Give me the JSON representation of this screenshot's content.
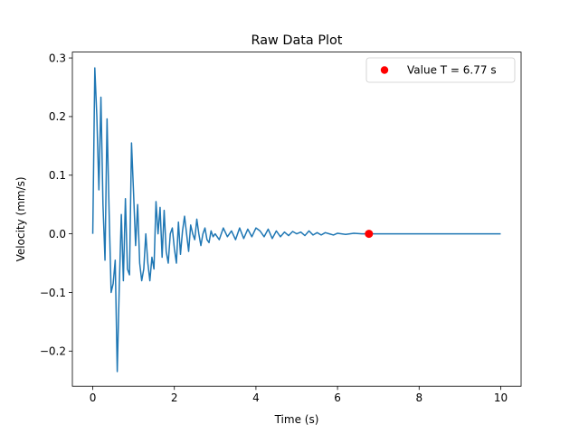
{
  "chart_data": {
    "type": "line",
    "title": "Raw Data Plot",
    "xlabel": "Time (s)",
    "ylabel": "Velocity (mm/s)",
    "xlim": [
      -0.5,
      10.5
    ],
    "ylim": [
      -0.26,
      0.31
    ],
    "xticks": [
      0,
      2,
      4,
      6,
      8,
      10
    ],
    "yticks": [
      -0.2,
      -0.1,
      0.0,
      0.1,
      0.2,
      0.3
    ],
    "xtick_labels": [
      "0",
      "2",
      "4",
      "6",
      "8",
      "10"
    ],
    "ytick_labels": [
      "−0.2",
      "−0.1",
      "0.0",
      "0.1",
      "0.2",
      "0.3"
    ],
    "grid": false,
    "legend_position": "top-right",
    "series": [
      {
        "color": "#1f77b4",
        "x": [
          0.0,
          0.05,
          0.1,
          0.15,
          0.2,
          0.25,
          0.3,
          0.35,
          0.4,
          0.45,
          0.5,
          0.55,
          0.6,
          0.65,
          0.7,
          0.75,
          0.8,
          0.85,
          0.9,
          0.95,
          1.0,
          1.05,
          1.1,
          1.15,
          1.2,
          1.25,
          1.3,
          1.35,
          1.4,
          1.45,
          1.5,
          1.55,
          1.6,
          1.65,
          1.7,
          1.75,
          1.8,
          1.85,
          1.9,
          1.95,
          2.0,
          2.05,
          2.1,
          2.15,
          2.2,
          2.25,
          2.3,
          2.35,
          2.4,
          2.45,
          2.5,
          2.55,
          2.6,
          2.65,
          2.7,
          2.75,
          2.8,
          2.85,
          2.9,
          2.95,
          3.0,
          3.1,
          3.2,
          3.3,
          3.4,
          3.5,
          3.6,
          3.7,
          3.8,
          3.9,
          4.0,
          4.1,
          4.2,
          4.3,
          4.4,
          4.5,
          4.6,
          4.7,
          4.8,
          4.9,
          5.0,
          5.1,
          5.2,
          5.3,
          5.4,
          5.5,
          5.6,
          5.7,
          5.8,
          5.9,
          6.0,
          6.2,
          6.4,
          6.6,
          6.8,
          7.0,
          7.2,
          7.4,
          7.6,
          7.8,
          8.0,
          8.5,
          9.0,
          9.5,
          10.0
        ],
        "y": [
          0.0,
          0.283,
          0.2,
          0.075,
          0.233,
          0.05,
          -0.045,
          0.196,
          0.04,
          -0.1,
          -0.085,
          -0.045,
          -0.235,
          -0.09,
          0.033,
          -0.08,
          0.06,
          -0.06,
          -0.07,
          0.155,
          0.07,
          -0.02,
          0.05,
          -0.05,
          -0.08,
          -0.06,
          0.0,
          -0.05,
          -0.08,
          -0.04,
          -0.06,
          0.055,
          0.0,
          0.045,
          -0.04,
          0.04,
          -0.03,
          -0.05,
          0.0,
          0.01,
          -0.025,
          -0.05,
          0.02,
          -0.035,
          0.005,
          0.03,
          0.0,
          -0.03,
          0.015,
          0.0,
          -0.01,
          0.025,
          0.0,
          -0.02,
          0.0,
          0.01,
          -0.01,
          -0.015,
          0.005,
          -0.005,
          0.0,
          -0.01,
          0.01,
          -0.005,
          0.005,
          -0.01,
          0.01,
          -0.008,
          0.008,
          -0.005,
          0.01,
          0.005,
          -0.005,
          0.008,
          -0.008,
          0.005,
          -0.005,
          0.003,
          -0.003,
          0.004,
          0.0,
          0.003,
          -0.003,
          0.005,
          -0.002,
          0.002,
          -0.002,
          0.002,
          0.0,
          -0.002,
          0.001,
          -0.001,
          0.001,
          0.0,
          0.0,
          0.0,
          0.0,
          0.0,
          0.0,
          0.0,
          0.0,
          0.0,
          0.0,
          0.0,
          0.0
        ]
      }
    ],
    "marker": {
      "x": 6.77,
      "y": 0.0,
      "color": "#ff0000",
      "label": "Value T = 6.77 s"
    }
  }
}
